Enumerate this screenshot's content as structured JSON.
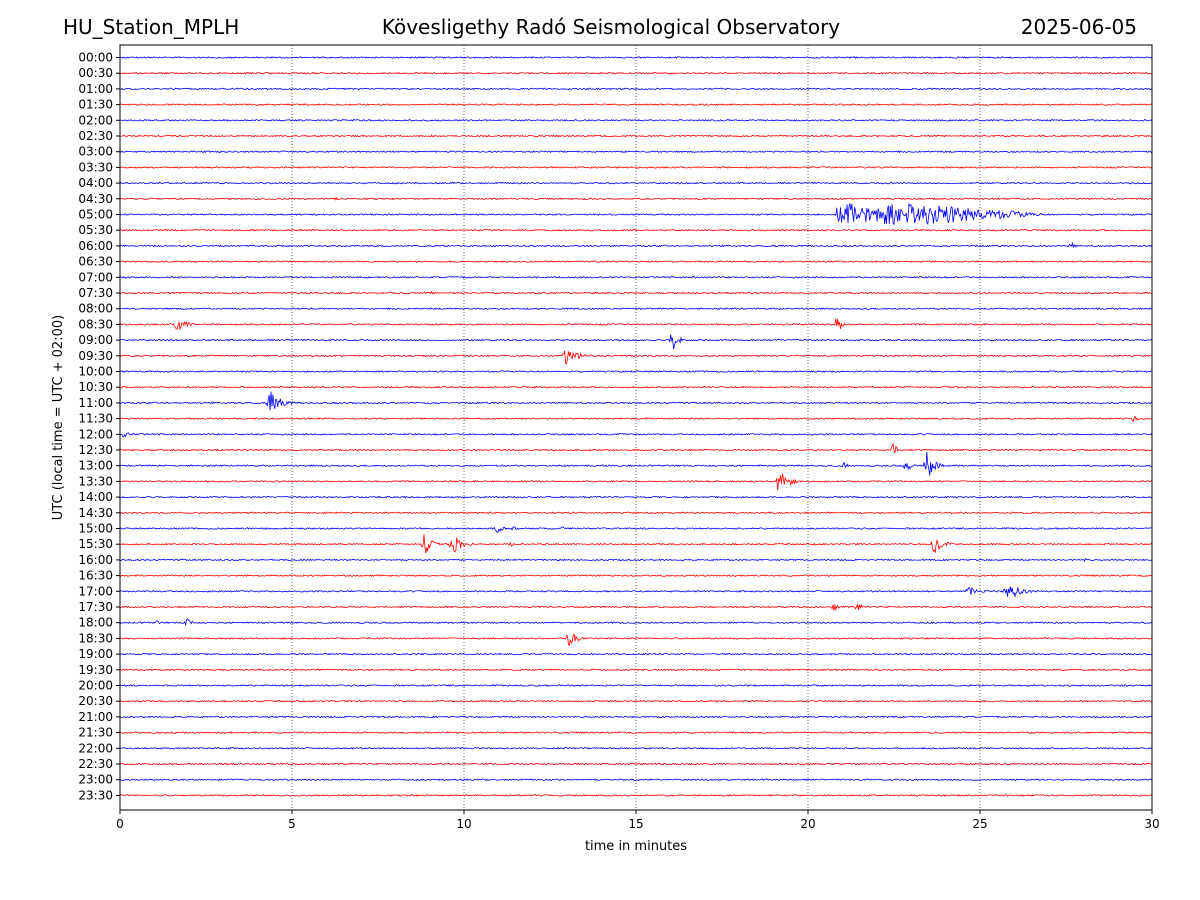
{
  "header": {
    "station": "HU_Station_MPLH",
    "observatory": "Kövesligethy Radó Seismological Observatory",
    "date": "2025-06-05"
  },
  "chart_data": {
    "type": "line",
    "title": "Kövesligethy Radó Seismological Observatory",
    "xlabel": "time in minutes",
    "ylabel": "UTC (local time = UTC + 02:00)",
    "xlim": [
      0,
      30
    ],
    "x_ticks": [
      0,
      5,
      10,
      15,
      20,
      25,
      30
    ],
    "grid": "vertical dotted lines at 5-minute ticks",
    "row_labels": [
      "00:00",
      "00:30",
      "01:00",
      "01:30",
      "02:00",
      "02:30",
      "03:00",
      "03:30",
      "04:00",
      "04:30",
      "05:00",
      "05:30",
      "06:00",
      "06:30",
      "07:00",
      "07:30",
      "08:00",
      "08:30",
      "09:00",
      "09:30",
      "10:00",
      "10:30",
      "11:00",
      "11:30",
      "12:00",
      "12:30",
      "13:00",
      "13:30",
      "14:00",
      "14:30",
      "15:00",
      "15:30",
      "16:00",
      "16:30",
      "17:00",
      "17:30",
      "18:00",
      "18:30",
      "19:00",
      "19:30",
      "20:00",
      "20:30",
      "21:00",
      "21:30",
      "22:00",
      "22:30",
      "23:00",
      "23:30"
    ],
    "row_colors": [
      "#0000ff",
      "#ff0000"
    ],
    "events": [
      {
        "row": "04:30",
        "minute": 6.2,
        "amp": 0.35,
        "dur": 0.2
      },
      {
        "row": "05:00",
        "minute": 20.8,
        "amp": 1.5,
        "dur": 6.5,
        "type": "tremor"
      },
      {
        "row": "06:00",
        "minute": 27.6,
        "amp": 0.6,
        "dur": 0.3
      },
      {
        "row": "07:30",
        "minute": 9.0,
        "amp": 0.2,
        "dur": 0.5
      },
      {
        "row": "08:30",
        "minute": 1.6,
        "amp": 1.0,
        "dur": 0.8
      },
      {
        "row": "08:30",
        "minute": 20.8,
        "amp": 1.3,
        "dur": 0.4
      },
      {
        "row": "09:00",
        "minute": 16.0,
        "amp": 1.6,
        "dur": 0.5
      },
      {
        "row": "09:30",
        "minute": 12.9,
        "amp": 1.1,
        "dur": 1.0
      },
      {
        "row": "11:00",
        "minute": 4.3,
        "amp": 1.8,
        "dur": 0.8
      },
      {
        "row": "11:30",
        "minute": 29.4,
        "amp": 0.4,
        "dur": 0.6
      },
      {
        "row": "12:00",
        "minute": 0.0,
        "amp": 0.4,
        "dur": 1.1
      },
      {
        "row": "12:30",
        "minute": 22.4,
        "amp": 1.0,
        "dur": 0.4
      },
      {
        "row": "13:00",
        "minute": 21.0,
        "amp": 0.5,
        "dur": 0.3
      },
      {
        "row": "13:00",
        "minute": 22.8,
        "amp": 0.8,
        "dur": 0.5
      },
      {
        "row": "13:00",
        "minute": 23.4,
        "amp": 2.0,
        "dur": 0.6
      },
      {
        "row": "13:30",
        "minute": 19.1,
        "amp": 1.9,
        "dur": 0.7
      },
      {
        "row": "15:00",
        "minute": 10.9,
        "amp": 0.6,
        "dur": 0.5
      },
      {
        "row": "15:00",
        "minute": 11.4,
        "amp": 0.4,
        "dur": 0.3
      },
      {
        "row": "15:00",
        "minute": 12.8,
        "amp": 0.25,
        "dur": 0.3
      },
      {
        "row": "15:30",
        "minute": 8.8,
        "amp": 2.0,
        "dur": 0.5
      },
      {
        "row": "15:30",
        "minute": 9.6,
        "amp": 1.6,
        "dur": 0.7
      },
      {
        "row": "15:30",
        "minute": 11.3,
        "amp": 0.4,
        "dur": 0.3
      },
      {
        "row": "15:30",
        "minute": 23.6,
        "amp": 1.2,
        "dur": 0.8
      },
      {
        "row": "16:00",
        "minute": 28.0,
        "amp": 0.2,
        "dur": 0.8
      },
      {
        "row": "17:00",
        "minute": 24.6,
        "amp": 0.6,
        "dur": 1.0
      },
      {
        "row": "17:00",
        "minute": 25.7,
        "amp": 1.8,
        "dur": 0.9
      },
      {
        "row": "17:30",
        "minute": 20.7,
        "amp": 0.5,
        "dur": 0.4
      },
      {
        "row": "17:30",
        "minute": 21.4,
        "amp": 0.8,
        "dur": 0.3
      },
      {
        "row": "18:00",
        "minute": 1.0,
        "amp": 0.3,
        "dur": 0.5
      },
      {
        "row": "18:00",
        "minute": 1.9,
        "amp": 0.8,
        "dur": 0.3
      },
      {
        "row": "18:30",
        "minute": 13.0,
        "amp": 1.3,
        "dur": 0.6
      }
    ]
  }
}
